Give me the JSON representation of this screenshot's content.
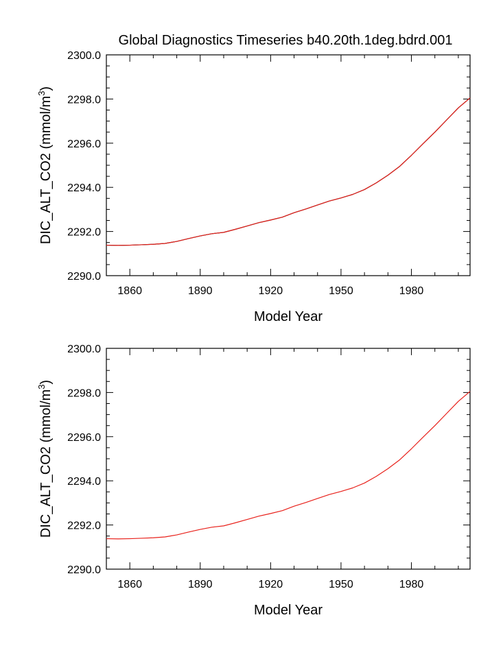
{
  "figure_title": "Global Diagnostics Timeseries b40.20th.1deg.bdrd.001",
  "chart_data": [
    {
      "type": "line",
      "title": "Global Diagnostics Timeseries b40.20th.1deg.bdrd.001",
      "xlabel": "Model Year",
      "ylabel": "DIC_ALT_CO2 (mmol/m",
      "ylabel_superscript": "3",
      "ylabel_close": ")",
      "xlim": [
        1850,
        2005
      ],
      "ylim": [
        2290.0,
        2300.0
      ],
      "x_ticks": [
        1860,
        1890,
        1920,
        1950,
        1980
      ],
      "x_tick_labels": [
        "1860",
        "1890",
        "1920",
        "1950",
        "1980"
      ],
      "x_minor_step": 10,
      "y_ticks": [
        2290.0,
        2292.0,
        2294.0,
        2296.0,
        2298.0,
        2300.0
      ],
      "y_tick_labels": [
        "2290.0",
        "2292.0",
        "2294.0",
        "2296.0",
        "2298.0",
        "2300.0"
      ],
      "y_minor_step": 0.5,
      "grid": false,
      "series": [
        {
          "color": "#000000",
          "overlay_color": "#e8201a",
          "x": [
            1850,
            1855,
            1860,
            1865,
            1870,
            1875,
            1880,
            1885,
            1890,
            1895,
            1900,
            1905,
            1910,
            1915,
            1920,
            1925,
            1930,
            1935,
            1940,
            1945,
            1950,
            1955,
            1960,
            1965,
            1970,
            1975,
            1980,
            1985,
            1990,
            1995,
            2000,
            2005
          ],
          "y": [
            2291.38,
            2291.37,
            2291.38,
            2291.4,
            2291.42,
            2291.46,
            2291.55,
            2291.68,
            2291.8,
            2291.9,
            2291.96,
            2292.1,
            2292.25,
            2292.4,
            2292.52,
            2292.65,
            2292.85,
            2293.02,
            2293.2,
            2293.38,
            2293.52,
            2293.68,
            2293.9,
            2294.2,
            2294.55,
            2294.95,
            2295.45,
            2295.98,
            2296.5,
            2297.05,
            2297.6,
            2298.05
          ]
        }
      ]
    },
    {
      "type": "line",
      "title": "",
      "xlabel": "Model Year",
      "ylabel": "DIC_ALT_CO2 (mmol/m",
      "ylabel_superscript": "3",
      "ylabel_close": ")",
      "xlim": [
        1850,
        2005
      ],
      "ylim": [
        2290.0,
        2300.0
      ],
      "x_ticks": [
        1860,
        1890,
        1920,
        1950,
        1980
      ],
      "x_tick_labels": [
        "1860",
        "1890",
        "1920",
        "1950",
        "1980"
      ],
      "x_minor_step": 10,
      "y_ticks": [
        2290.0,
        2292.0,
        2294.0,
        2296.0,
        2298.0,
        2300.0
      ],
      "y_tick_labels": [
        "2290.0",
        "2292.0",
        "2294.0",
        "2296.0",
        "2298.0",
        "2300.0"
      ],
      "y_minor_step": 0.5,
      "grid": false,
      "series": [
        {
          "color": "#e8201a",
          "x": [
            1850,
            1855,
            1860,
            1865,
            1870,
            1875,
            1880,
            1885,
            1890,
            1895,
            1900,
            1905,
            1910,
            1915,
            1920,
            1925,
            1930,
            1935,
            1940,
            1945,
            1950,
            1955,
            1960,
            1965,
            1970,
            1975,
            1980,
            1985,
            1990,
            1995,
            2000,
            2005
          ],
          "y": [
            2291.38,
            2291.37,
            2291.38,
            2291.4,
            2291.42,
            2291.46,
            2291.55,
            2291.68,
            2291.8,
            2291.9,
            2291.96,
            2292.1,
            2292.25,
            2292.4,
            2292.52,
            2292.65,
            2292.85,
            2293.02,
            2293.2,
            2293.38,
            2293.52,
            2293.68,
            2293.9,
            2294.2,
            2294.55,
            2294.95,
            2295.45,
            2295.98,
            2296.5,
            2297.05,
            2297.6,
            2298.05
          ]
        }
      ]
    }
  ]
}
